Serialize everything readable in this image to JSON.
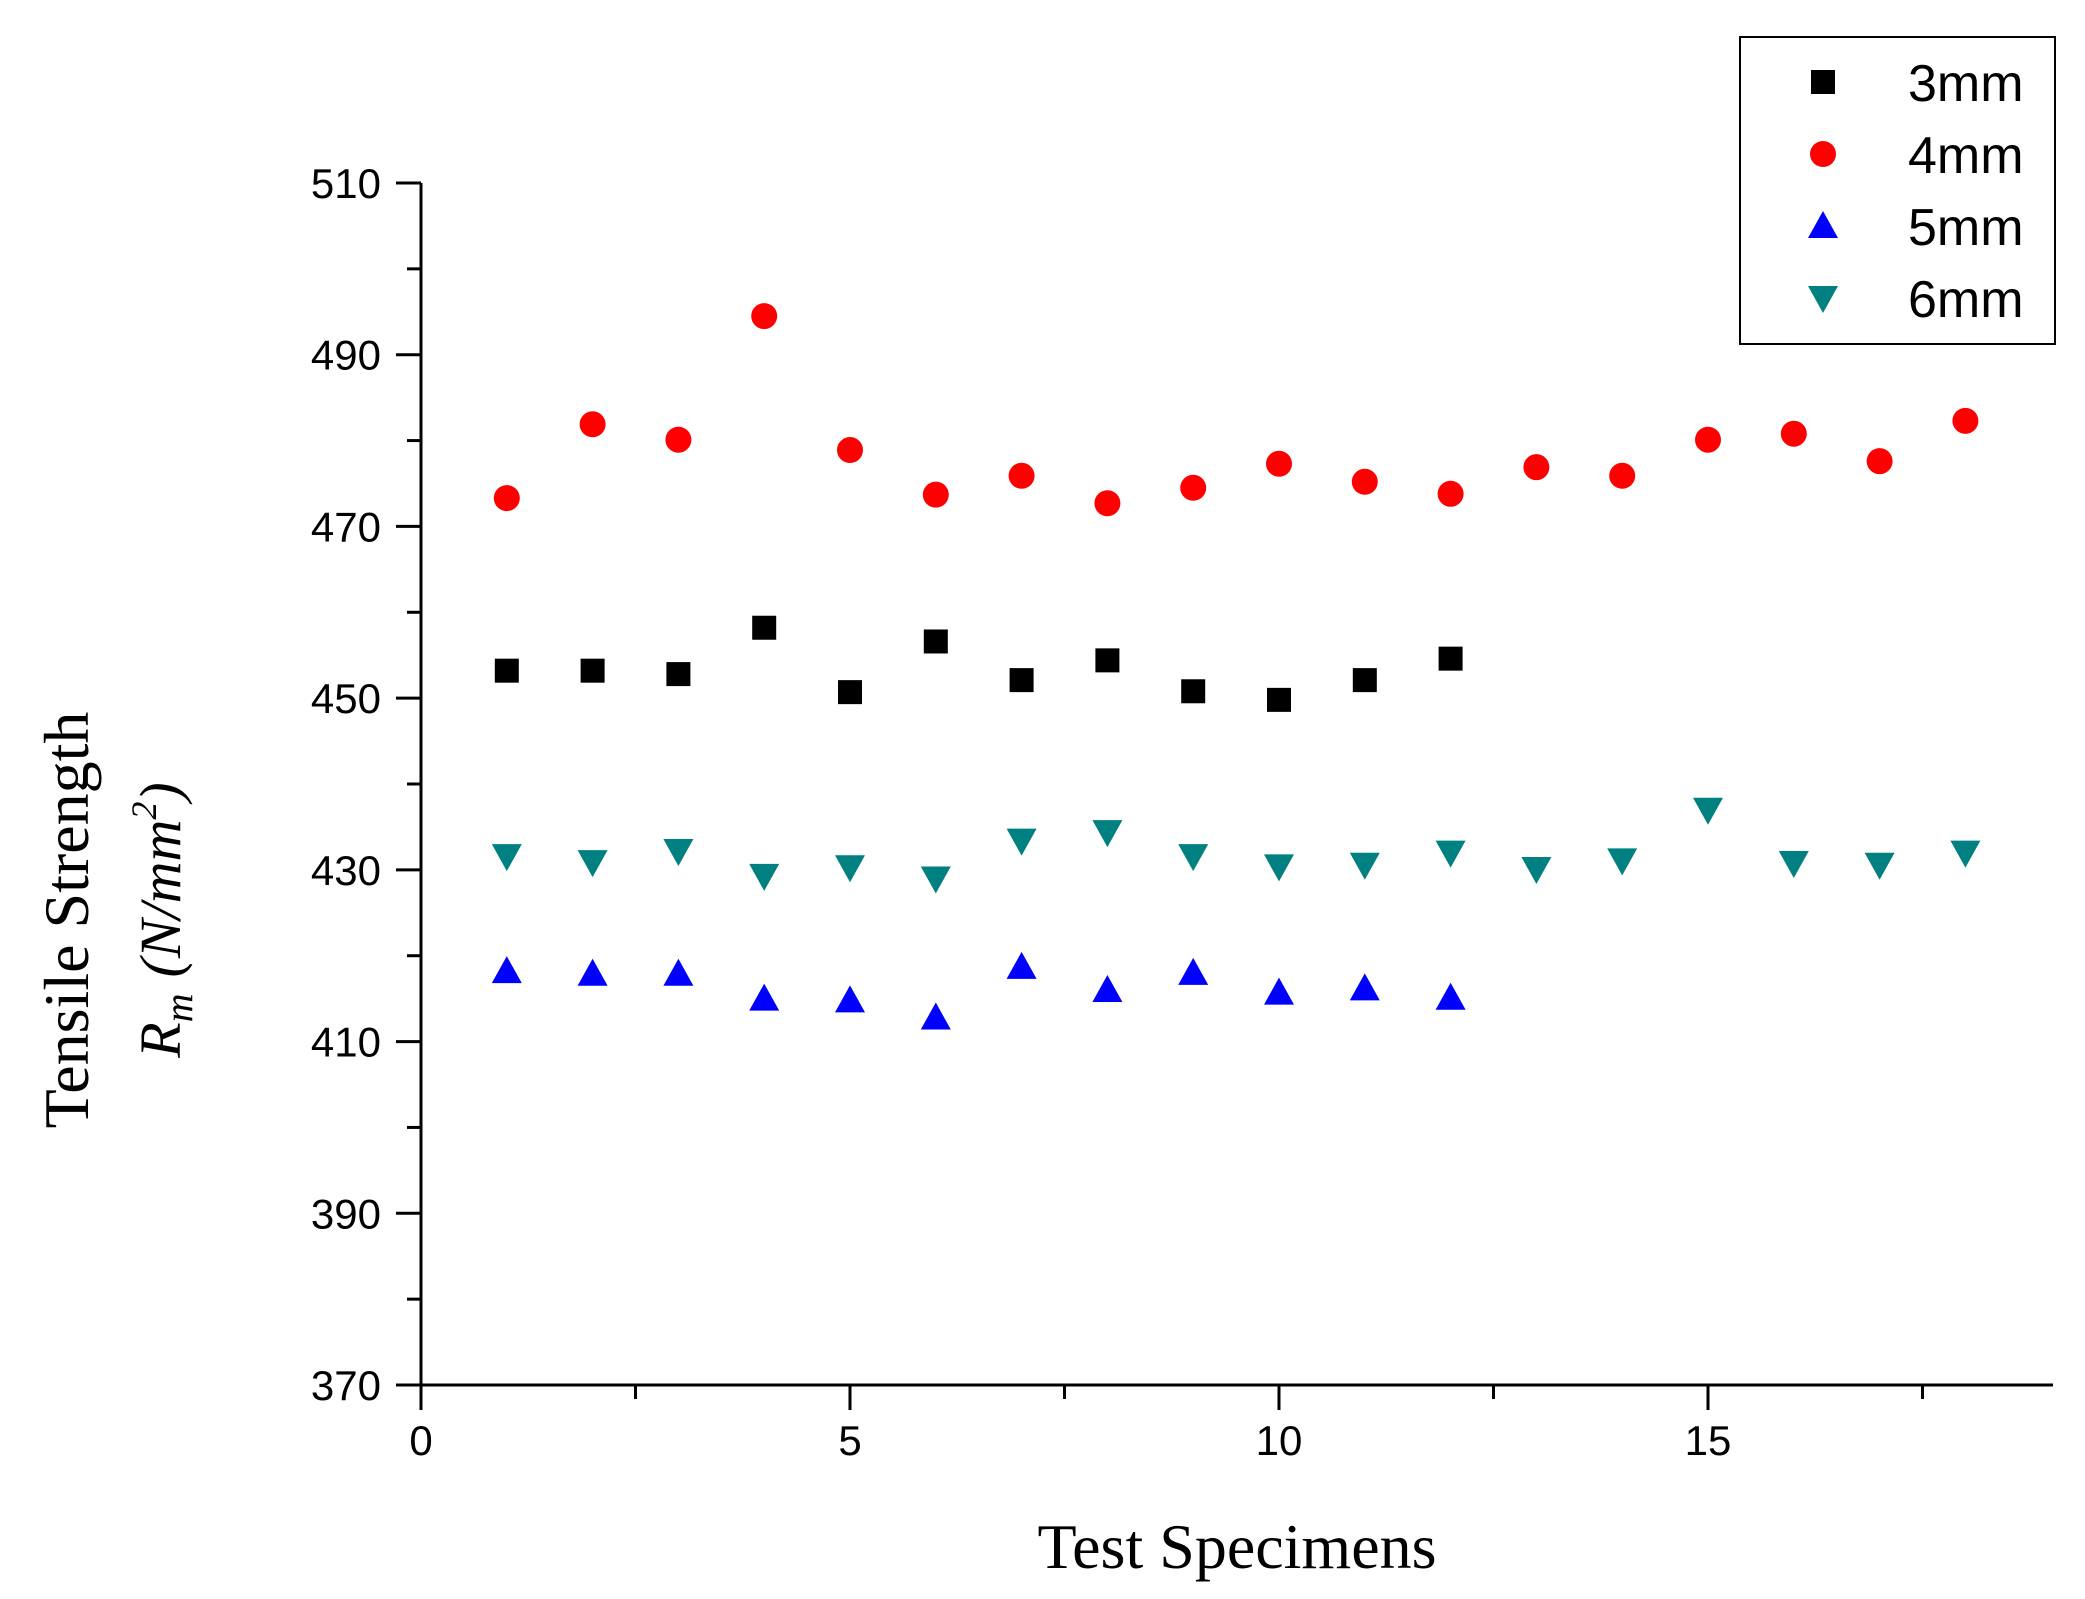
{
  "chart_data": {
    "type": "scatter",
    "title": "",
    "xlabel": "Test Specimens",
    "ylabel": "Tensile Strength",
    "ylabel_symbol": "R",
    "ylabel_subscript": "m",
    "ylabel_units_open": "(N/mm",
    "ylabel_units_power": "2",
    "ylabel_units_close": ")",
    "xlim": [
      0,
      19
    ],
    "ylim": [
      370,
      510
    ],
    "x_ticks": [
      0,
      5,
      10,
      15
    ],
    "x_tick_labels": [
      "0",
      "5",
      "10",
      "15"
    ],
    "y_ticks": [
      370,
      390,
      410,
      430,
      450,
      470,
      490,
      510
    ],
    "y_tick_labels": [
      "370",
      "390",
      "410",
      "430",
      "450",
      "470",
      "490",
      "510"
    ],
    "grid": false,
    "legend_position": "top-right",
    "series": [
      {
        "name": "3mm",
        "marker": "square",
        "color": "#000000",
        "x": [
          1,
          2,
          3,
          4,
          5,
          6,
          7,
          8,
          9,
          10,
          11,
          12
        ],
        "y": [
          453.2,
          453.2,
          452.8,
          458.2,
          450.7,
          456.6,
          452.1,
          454.4,
          450.8,
          449.8,
          452.1,
          454.6
        ]
      },
      {
        "name": "4mm",
        "marker": "circle",
        "color": "#ff0000",
        "x": [
          1,
          2,
          3,
          4,
          5,
          6,
          7,
          8,
          9,
          10,
          11,
          12,
          13,
          14,
          15,
          16,
          17,
          18
        ],
        "y": [
          473.3,
          481.9,
          480.1,
          494.5,
          478.9,
          473.7,
          475.9,
          472.7,
          474.5,
          477.3,
          475.2,
          473.8,
          476.9,
          475.9,
          480.1,
          480.8,
          477.6,
          482.3
        ]
      },
      {
        "name": "5mm",
        "marker": "triangle-up",
        "color": "#0000ff",
        "x": [
          1,
          2,
          3,
          4,
          5,
          6,
          7,
          8,
          9,
          10,
          11,
          12
        ],
        "y": [
          418.2,
          417.9,
          417.9,
          415.0,
          414.8,
          412.8,
          418.7,
          416.0,
          418.0,
          415.7,
          416.2,
          415.1
        ]
      },
      {
        "name": "6mm",
        "marker": "triangle-down",
        "color": "#008080",
        "x": [
          1,
          2,
          3,
          4,
          5,
          6,
          7,
          8,
          9,
          10,
          11,
          12,
          13,
          14,
          15,
          16,
          17,
          18
        ],
        "y": [
          431.6,
          430.9,
          432.2,
          429.3,
          430.3,
          429.0,
          433.4,
          434.4,
          431.6,
          430.4,
          430.6,
          432.0,
          430.1,
          431.1,
          437.0,
          430.8,
          430.6,
          432.0
        ]
      }
    ]
  }
}
